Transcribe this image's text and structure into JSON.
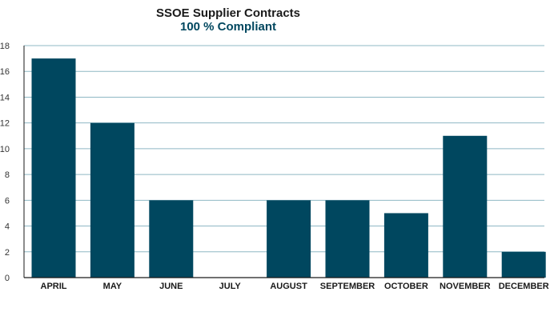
{
  "chart_data": {
    "type": "bar",
    "title": "SSOE Supplier Contracts",
    "subtitle": "100 % Compliant",
    "categories": [
      "APRIL",
      "MAY",
      "JUNE",
      "JULY",
      "AUGUST",
      "SEPTEMBER",
      "OCTOBER",
      "NOVEMBER",
      "DECEMBER"
    ],
    "values": [
      17,
      12,
      6,
      0,
      6,
      6,
      5,
      11,
      2
    ],
    "ylim": [
      0,
      18
    ],
    "yticks": [
      0,
      2,
      4,
      6,
      8,
      10,
      12,
      14,
      16,
      18
    ],
    "grid": true,
    "colors": {
      "bar": "#00475f",
      "grid": "#8fb8c4",
      "axis": "#1a1a1a"
    }
  }
}
